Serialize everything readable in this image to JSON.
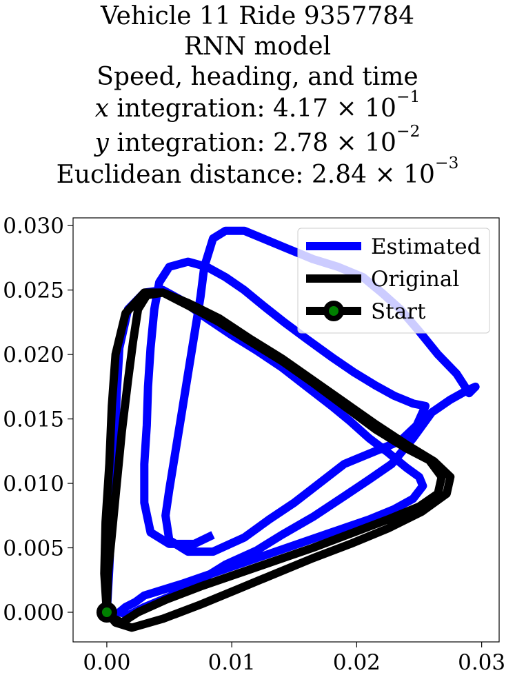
{
  "title": {
    "line1": "Vehicle 11 Ride 9357784",
    "line2": "RNN model",
    "line3": "Speed, heading, and time",
    "line4": {
      "var": "x",
      "label": " integration: ",
      "mantissa": "4.17",
      "times": " × 10",
      "exponent": "−1"
    },
    "line5": {
      "var": "y",
      "label": " integration: ",
      "mantissa": "2.78",
      "times": " × 10",
      "exponent": "−2"
    },
    "line6": {
      "label": "Euclidean distance: ",
      "mantissa": "2.84",
      "times": " × 10",
      "exponent": "−3"
    }
  },
  "chart_data": {
    "type": "line",
    "xlim": [
      -0.0027,
      0.0314
    ],
    "ylim": [
      -0.0023,
      0.0306
    ],
    "x_ticks": [
      0.0,
      0.01,
      0.02,
      0.03
    ],
    "x_tick_labels": [
      "0.00",
      "0.01",
      "0.02",
      "0.03"
    ],
    "y_ticks": [
      0.0,
      0.005,
      0.01,
      0.015,
      0.02,
      0.025,
      0.03
    ],
    "y_tick_labels": [
      "0.000",
      "0.005",
      "0.010",
      "0.015",
      "0.020",
      "0.025",
      "0.030"
    ],
    "grid": false,
    "legend_position": "top-right",
    "series": [
      {
        "name": "Estimated",
        "color": "#0000ff",
        "points": [
          [
            0.0,
            0.0
          ],
          [
            0.0002,
            0.0035
          ],
          [
            0.0004,
            0.008
          ],
          [
            0.0006,
            0.0125
          ],
          [
            0.0008,
            0.017
          ],
          [
            0.001,
            0.0205
          ],
          [
            0.0017,
            0.0235
          ],
          [
            0.003,
            0.0248
          ],
          [
            0.0045,
            0.025
          ],
          [
            0.006,
            0.0242
          ],
          [
            0.008,
            0.0228
          ],
          [
            0.01,
            0.0215
          ],
          [
            0.012,
            0.0203
          ],
          [
            0.014,
            0.019
          ],
          [
            0.016,
            0.0175
          ],
          [
            0.018,
            0.016
          ],
          [
            0.0195,
            0.0148
          ],
          [
            0.021,
            0.0135
          ],
          [
            0.0225,
            0.0124
          ],
          [
            0.024,
            0.0112
          ],
          [
            0.025,
            0.0105
          ],
          [
            0.0253,
            0.0098
          ],
          [
            0.0245,
            0.0088
          ],
          [
            0.023,
            0.008
          ],
          [
            0.021,
            0.0072
          ],
          [
            0.018,
            0.0062
          ],
          [
            0.015,
            0.0052
          ],
          [
            0.012,
            0.0042
          ],
          [
            0.009,
            0.0032
          ],
          [
            0.006,
            0.0022
          ],
          [
            0.004,
            0.0016
          ],
          [
            0.003,
            0.0013
          ],
          [
            0.0023,
            0.0008
          ],
          [
            0.0015,
            0.0004
          ],
          [
            0.001,
            0.0
          ],
          [
            0.0018,
            -0.0002
          ],
          [
            0.003,
            0.0004
          ],
          [
            0.005,
            0.0012
          ],
          [
            0.0075,
            0.0025
          ],
          [
            0.0095,
            0.0037
          ],
          [
            0.012,
            0.0048
          ],
          [
            0.014,
            0.006
          ],
          [
            0.0165,
            0.0074
          ],
          [
            0.019,
            0.009
          ],
          [
            0.021,
            0.0103
          ],
          [
            0.0228,
            0.0115
          ],
          [
            0.0245,
            0.0135
          ],
          [
            0.026,
            0.0155
          ],
          [
            0.0275,
            0.0165
          ],
          [
            0.0288,
            0.0172
          ],
          [
            0.0295,
            0.0175
          ],
          [
            0.029,
            0.017
          ],
          [
            0.028,
            0.0185
          ],
          [
            0.0265,
            0.02
          ],
          [
            0.025,
            0.0218
          ],
          [
            0.0235,
            0.0235
          ],
          [
            0.022,
            0.0248
          ],
          [
            0.0205,
            0.026
          ],
          [
            0.0185,
            0.0268
          ],
          [
            0.0165,
            0.0274
          ],
          [
            0.0145,
            0.0282
          ],
          [
            0.0125,
            0.029
          ],
          [
            0.011,
            0.0296
          ],
          [
            0.0095,
            0.0296
          ],
          [
            0.0085,
            0.029
          ],
          [
            0.0078,
            0.0268
          ],
          [
            0.0075,
            0.0245
          ],
          [
            0.007,
            0.0215
          ],
          [
            0.0065,
            0.0185
          ],
          [
            0.006,
            0.0155
          ],
          [
            0.0055,
            0.0125
          ],
          [
            0.005,
            0.0095
          ],
          [
            0.0047,
            0.0075
          ],
          [
            0.005,
            0.0056
          ],
          [
            0.0065,
            0.0047
          ],
          [
            0.0085,
            0.0047
          ],
          [
            0.011,
            0.0058
          ],
          [
            0.013,
            0.0072
          ],
          [
            0.015,
            0.0085
          ],
          [
            0.017,
            0.01
          ],
          [
            0.019,
            0.0115
          ],
          [
            0.0215,
            0.0125
          ],
          [
            0.0235,
            0.0133
          ],
          [
            0.0248,
            0.0145
          ],
          [
            0.0255,
            0.016
          ],
          [
            0.0245,
            0.0162
          ],
          [
            0.023,
            0.0168
          ],
          [
            0.0215,
            0.0176
          ],
          [
            0.0198,
            0.0186
          ],
          [
            0.018,
            0.0198
          ],
          [
            0.016,
            0.0212
          ],
          [
            0.0142,
            0.0225
          ],
          [
            0.0125,
            0.0238
          ],
          [
            0.011,
            0.025
          ],
          [
            0.0095,
            0.026
          ],
          [
            0.008,
            0.0268
          ],
          [
            0.0065,
            0.0272
          ],
          [
            0.005,
            0.0268
          ],
          [
            0.0042,
            0.0256
          ],
          [
            0.0038,
            0.0235
          ],
          [
            0.0035,
            0.0205
          ],
          [
            0.0033,
            0.0175
          ],
          [
            0.0032,
            0.0145
          ],
          [
            0.003,
            0.0115
          ],
          [
            0.003,
            0.0085
          ],
          [
            0.0035,
            0.0062
          ],
          [
            0.005,
            0.0053
          ],
          [
            0.007,
            0.0053
          ],
          [
            0.0085,
            0.006
          ]
        ]
      },
      {
        "name": "Original",
        "color": "#000000",
        "points": [
          [
            0.0,
            0.0
          ],
          [
            -0.0002,
            0.003
          ],
          [
            -0.0001,
            0.007
          ],
          [
            0.0002,
            0.0115
          ],
          [
            0.0004,
            0.016
          ],
          [
            0.0007,
            0.02
          ],
          [
            0.0015,
            0.0232
          ],
          [
            0.003,
            0.0248
          ],
          [
            0.0045,
            0.0248
          ],
          [
            0.0065,
            0.0238
          ],
          [
            0.009,
            0.0225
          ],
          [
            0.0115,
            0.021
          ],
          [
            0.014,
            0.0195
          ],
          [
            0.0165,
            0.0178
          ],
          [
            0.019,
            0.016
          ],
          [
            0.0215,
            0.0142
          ],
          [
            0.024,
            0.0127
          ],
          [
            0.0258,
            0.0118
          ],
          [
            0.0268,
            0.0105
          ],
          [
            0.0265,
            0.0092
          ],
          [
            0.025,
            0.0082
          ],
          [
            0.0225,
            0.0072
          ],
          [
            0.0195,
            0.0061
          ],
          [
            0.0165,
            0.005
          ],
          [
            0.0135,
            0.004
          ],
          [
            0.0105,
            0.003
          ],
          [
            0.0075,
            0.002
          ],
          [
            0.0048,
            0.001
          ],
          [
            0.0025,
            0.0
          ],
          [
            0.0012,
            -0.0008
          ],
          [
            0.0004,
            -0.0004
          ],
          [
            0.0,
            0.0
          ],
          [
            0.0007,
            -0.0008
          ],
          [
            0.002,
            -0.0012
          ],
          [
            0.0045,
            -0.0005
          ],
          [
            0.0075,
            0.0006
          ],
          [
            0.0105,
            0.0018
          ],
          [
            0.0135,
            0.003
          ],
          [
            0.0165,
            0.0042
          ],
          [
            0.0195,
            0.0053
          ],
          [
            0.0225,
            0.0065
          ],
          [
            0.0252,
            0.0078
          ],
          [
            0.0272,
            0.0092
          ],
          [
            0.0275,
            0.0105
          ],
          [
            0.0262,
            0.0117
          ],
          [
            0.024,
            0.013
          ],
          [
            0.0215,
            0.0146
          ],
          [
            0.019,
            0.0163
          ],
          [
            0.0165,
            0.018
          ],
          [
            0.014,
            0.0197
          ],
          [
            0.0115,
            0.0212
          ],
          [
            0.009,
            0.0228
          ],
          [
            0.0065,
            0.024
          ],
          [
            0.0045,
            0.0248
          ],
          [
            0.0032,
            0.0246
          ],
          [
            0.0025,
            0.0235
          ],
          [
            0.0021,
            0.021
          ],
          [
            0.0017,
            0.018
          ],
          [
            0.0012,
            0.014
          ],
          [
            0.0008,
            0.01
          ],
          [
            0.0004,
            0.006
          ],
          [
            0.0001,
            0.003
          ],
          [
            0.0,
            0.0
          ]
        ]
      }
    ],
    "start": {
      "name": "Start",
      "point": [
        0.0,
        0.0
      ],
      "ring_color": "#000000",
      "fill_color": "#008000"
    }
  }
}
